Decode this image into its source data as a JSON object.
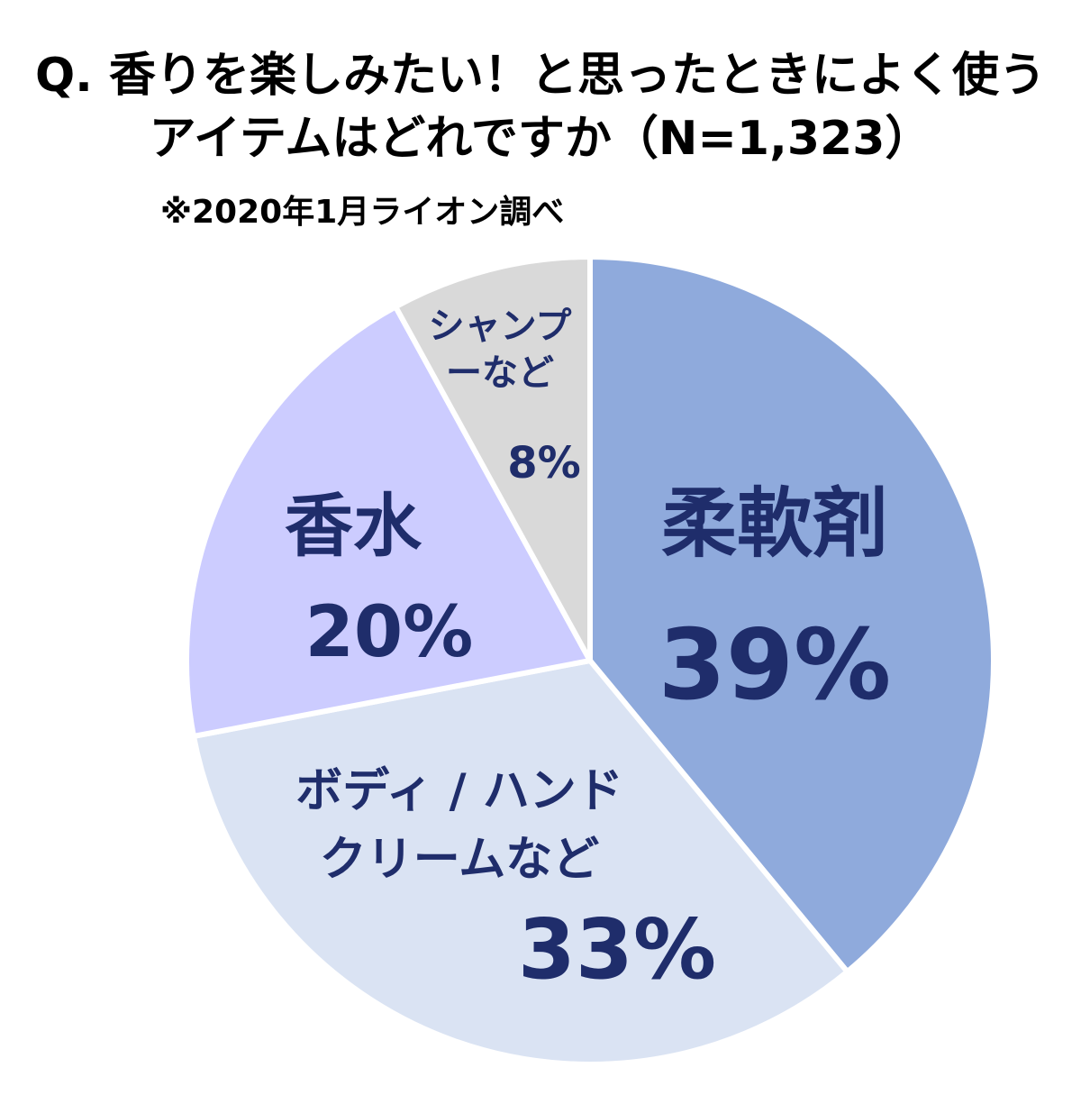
{
  "chart_data": {
    "type": "pie",
    "title_lines": [
      "Q. 香りを楽しみたい！と思ったときによく使う",
      "アイテムはどれですか（N=1,323）"
    ],
    "note": "※2020年1月ライオン調べ",
    "start_angle_deg": 0,
    "direction": "clockwise",
    "slices": [
      {
        "label_lines": [
          "柔軟剤"
        ],
        "value": 39,
        "value_label": "39%",
        "color": "#8faadc"
      },
      {
        "label_lines": [
          "ボディ / ハンド",
          "クリームなど"
        ],
        "value": 33,
        "value_label": "33%",
        "color": "#dae3f3"
      },
      {
        "label_lines": [
          "香水"
        ],
        "value": 20,
        "value_label": "20%",
        "color": "#ccccff"
      },
      {
        "label_lines": [
          "シャンプ",
          "ーなど"
        ],
        "value": 8,
        "value_label": "8%",
        "color": "#d9d9d9"
      }
    ],
    "label_color": "#1f2d6b"
  }
}
